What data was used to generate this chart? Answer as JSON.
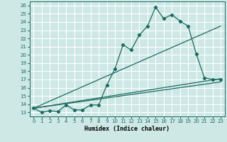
{
  "xlabel": "Humidex (Indice chaleur)",
  "bg_color": "#cde8e5",
  "grid_color": "#ffffff",
  "line_color": "#1a6b60",
  "xlim": [
    -0.5,
    23.5
  ],
  "ylim": [
    12.5,
    26.5
  ],
  "xticks": [
    0,
    1,
    2,
    3,
    4,
    5,
    6,
    7,
    8,
    9,
    10,
    11,
    12,
    13,
    14,
    15,
    16,
    17,
    18,
    19,
    20,
    21,
    22,
    23
  ],
  "yticks": [
    13,
    14,
    15,
    16,
    17,
    18,
    19,
    20,
    21,
    22,
    23,
    24,
    25,
    26
  ],
  "data_x": [
    0,
    1,
    2,
    3,
    4,
    5,
    6,
    7,
    8,
    9,
    10,
    11,
    12,
    13,
    14,
    15,
    16,
    17,
    18,
    19,
    20,
    21,
    22,
    23
  ],
  "data_y": [
    13.5,
    13.0,
    13.2,
    13.1,
    13.9,
    13.3,
    13.3,
    13.9,
    13.9,
    16.3,
    18.3,
    21.2,
    20.6,
    22.4,
    23.5,
    25.8,
    24.4,
    24.9,
    24.1,
    23.5,
    20.1,
    17.2,
    17.0,
    17.0
  ],
  "trend1_x": [
    0,
    23
  ],
  "trend1_y": [
    13.5,
    16.7
  ],
  "trend2_x": [
    0,
    23
  ],
  "trend2_y": [
    13.5,
    23.5
  ],
  "trend3_x": [
    0,
    23
  ],
  "trend3_y": [
    13.5,
    17.1
  ]
}
